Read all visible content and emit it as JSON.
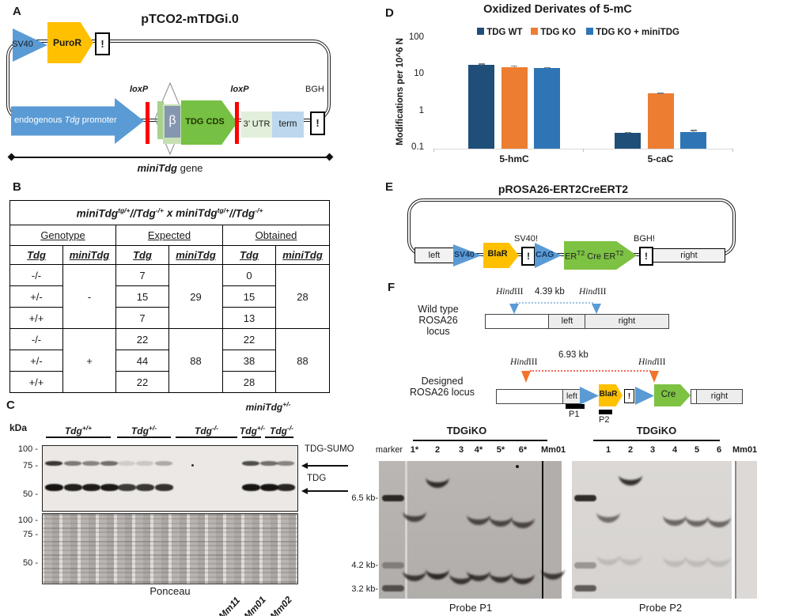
{
  "panelA": {
    "label": "A",
    "title": "pTCO2-mTDGi.0",
    "sv40": "SV40",
    "puror": "PuroR",
    "bang": "!",
    "promoter": {
      "pre": "endogenous ",
      "it": "Tdg",
      "post": " promoter"
    },
    "loxp": "loxP",
    "beta": "β",
    "tdg_cds": "TDG CDS",
    "utr": "3’ UTR",
    "term": "term",
    "bgh": "BGH",
    "gene": {
      "it": "miniTdg",
      "rest": " gene"
    }
  },
  "panelB": {
    "label": "B",
    "title": {
      "t1": "miniTdg",
      "s1": "tg/+",
      "t2": "//Tdg",
      "s2": "-/+",
      "t3": "x miniTdg",
      "s3": "tg/+",
      "t4": "//Tdg",
      "s4": "-/+"
    },
    "headers": {
      "genotype": "Genotype",
      "expected": "Expected",
      "obtained": "Obtained"
    },
    "subheaders": [
      "Tdg",
      "miniTdg",
      "Tdg",
      "miniTdg",
      "Tdg",
      "miniTdg"
    ],
    "rows": [
      {
        "tdg": "-/-",
        "exp": "7",
        "obt": "0"
      },
      {
        "tdg": "+/-",
        "exp": "15",
        "obt": "15"
      },
      {
        "tdg": "+/+",
        "exp": "7",
        "obt": "13"
      },
      {
        "tdg": "-/-",
        "exp": "22",
        "obt": "22"
      },
      {
        "tdg": "+/-",
        "exp": "44",
        "obt": "38"
      },
      {
        "tdg": "+/+",
        "exp": "22",
        "obt": "28"
      }
    ],
    "merged": {
      "minus": "-",
      "plus": "+",
      "exp_minus": "29",
      "exp_plus": "88",
      "obt_minus": "28",
      "obt_plus": "88"
    }
  },
  "panelC": {
    "label": "C",
    "kda": "kDa",
    "groups": [
      {
        "b": "Tdg",
        "s": "+/+"
      },
      {
        "b": "Tdg",
        "s": "+/-"
      },
      {
        "b": "Tdg",
        "s": "-/-"
      },
      {
        "b": "Tdg",
        "s": "+/-"
      },
      {
        "b": "Tdg",
        "s": "-/-"
      }
    ],
    "minitdg": {
      "b": "miniTdg",
      "s": "+/-"
    },
    "markers": [
      "100 -",
      "75 -",
      "50 -"
    ],
    "sumo": "TDG-SUMO",
    "tdg": "TDG",
    "ponceau": "Ponceau",
    "mice": [
      "Mm11",
      "Mm01",
      "Mm02"
    ]
  },
  "chart_data": {
    "type": "bar",
    "title": "Oxidized Derivates of 5-mC",
    "ylabel": "Modifications per 10^6 N",
    "yscale": "log",
    "ylim": [
      0.1,
      100
    ],
    "ytick_labels": [
      "100",
      "10",
      "1",
      "0.1"
    ],
    "yticks": [
      100,
      10,
      1,
      0.1
    ],
    "grid": false,
    "legend_position": "top",
    "categories": [
      "5-hmC",
      "5-caC"
    ],
    "series": [
      {
        "name": "TDG WT",
        "color": "#1F4E79",
        "values": [
          18,
          0.25
        ],
        "errors": [
          2.0,
          0.02
        ]
      },
      {
        "name": "TDG KO",
        "color": "#ED7D31",
        "values": [
          16,
          3.0
        ],
        "errors": [
          1.3,
          0.15
        ]
      },
      {
        "name": "TDG KO + miniTDG",
        "color": "#2E75B6",
        "values": [
          15,
          0.27
        ],
        "errors": [
          0.8,
          0.04
        ]
      }
    ],
    "error_color": "#7F7F7F",
    "axis_color": "#D9D9D9"
  },
  "panelE": {
    "label": "E",
    "title": "pROSA26-ERT2CreERT2",
    "left": "left",
    "sv40": "SV40",
    "blar": "BlaR",
    "bang": "!",
    "sv40bang": "SV40!",
    "cag": "CAG",
    "er": {
      "a": "ER",
      "s1": "T2",
      "b": " Cre ER",
      "s2": "T2"
    },
    "bghbang": "BGH!",
    "right": "right"
  },
  "panelF": {
    "label": "F",
    "wild": {
      "l1": "Wild type",
      "l2": "ROSA26",
      "l3": "locus",
      "hind": "Hind",
      "iii": "III",
      "size": "4.39 kb",
      "left": "left",
      "right": "right"
    },
    "designed": {
      "l1": "Designed",
      "l2": "ROSA26 locus",
      "hind": "Hind",
      "iii": "III",
      "size": "6.93 kb",
      "left": "left",
      "blar": "BlaR",
      "bang": "!",
      "cre": "Cre",
      "right": "right",
      "p1": "P1",
      "p2": "P2"
    },
    "gels": {
      "sizes": [
        "6.5 kb-",
        "4.2 kb-",
        "3.2 kb-"
      ],
      "p1": {
        "title": "TDGiKO",
        "marker": "marker",
        "mm": "Mm01",
        "caption": "Probe P1"
      },
      "p2": {
        "title": "TDGiKO",
        "mm": "Mm01",
        "caption": "Probe P2"
      }
    }
  },
  "gel_bands": {
    "p1": {
      "marker_x": 497,
      "marker_bands": [
        {
          "y": 630,
          "i": 0.88
        },
        {
          "y": 715,
          "i": 0.32
        },
        {
          "y": 744,
          "i": 0.62
        }
      ],
      "lanes": [
        {
          "label": "1*",
          "x": 524,
          "bands": [
            {
              "y": 633,
              "i": 0.72
            },
            {
              "y": 708,
              "i": 0.8
            }
          ]
        },
        {
          "label": "2",
          "x": 553,
          "bands": [
            {
              "y": 590,
              "i": 0.85
            },
            {
              "y": 706,
              "i": 0.88
            }
          ]
        },
        {
          "label": "3",
          "x": 583,
          "bands": [
            {
              "y": 712,
              "i": 0.8
            }
          ]
        },
        {
          "label": "4*",
          "x": 605,
          "bands": [
            {
              "y": 637,
              "i": 0.7
            },
            {
              "y": 708,
              "i": 0.8
            }
          ]
        },
        {
          "label": "5*",
          "x": 633,
          "bands": [
            {
              "y": 639,
              "i": 0.7
            },
            {
              "y": 710,
              "i": 0.8
            }
          ]
        },
        {
          "label": "6*",
          "x": 661,
          "bands": [
            {
              "y": 641,
              "i": 0.7
            },
            {
              "y": 712,
              "i": 0.8
            }
          ]
        }
      ],
      "mm_lane": {
        "x": 699,
        "bands": [
          {
            "y": 706,
            "i": 0.78
          }
        ]
      }
    },
    "p2": {
      "marker_x": 740,
      "marker_bands": [
        {
          "y": 630,
          "i": 0.88
        },
        {
          "y": 715,
          "i": 0.32
        },
        {
          "y": 744,
          "i": 0.62
        }
      ],
      "lanes": [
        {
          "label": "1",
          "x": 769,
          "bands": [
            {
              "y": 634,
              "i": 0.55
            },
            {
              "y": 688,
              "i": 0.13
            }
          ]
        },
        {
          "label": "2",
          "x": 797,
          "bands": [
            {
              "y": 587,
              "i": 0.85
            },
            {
              "y": 688,
              "i": 0.13
            }
          ]
        },
        {
          "label": "3",
          "x": 825,
          "bands": []
        },
        {
          "label": "4",
          "x": 853,
          "bands": [
            {
              "y": 638,
              "i": 0.58
            },
            {
              "y": 690,
              "i": 0.13
            }
          ]
        },
        {
          "label": "5",
          "x": 881,
          "bands": [
            {
              "y": 639,
              "i": 0.58
            },
            {
              "y": 690,
              "i": 0.13
            }
          ]
        },
        {
          "label": "6",
          "x": 909,
          "bands": [
            {
              "y": 640,
              "i": 0.58
            },
            {
              "y": 690,
              "i": 0.13
            }
          ]
        }
      ],
      "mm_lane": {
        "x": 941,
        "bands": []
      }
    }
  },
  "wb_bands": {
    "sumo_y": 583,
    "tdg_y": 612,
    "lanes": [
      {
        "x": 68,
        "sumo": 0.8,
        "tdg": 0.95
      },
      {
        "x": 92,
        "sumo": 0.5,
        "tdg": 0.9
      },
      {
        "x": 115,
        "sumo": 0.45,
        "tdg": 0.92
      },
      {
        "x": 138,
        "sumo": 0.55,
        "tdg": 0.93
      },
      {
        "x": 160,
        "sumo": 0.12,
        "tdg": 0.78
      },
      {
        "x": 183,
        "sumo": 0.15,
        "tdg": 0.8
      },
      {
        "x": 207,
        "sumo": 0.28,
        "tdg": 0.82
      },
      {
        "x": 317,
        "sumo": 0.7,
        "tdg": 0.95
      },
      {
        "x": 340,
        "sumo": 0.55,
        "tdg": 0.95
      },
      {
        "x": 361,
        "sumo": 0.45,
        "tdg": 0.88
      }
    ]
  }
}
